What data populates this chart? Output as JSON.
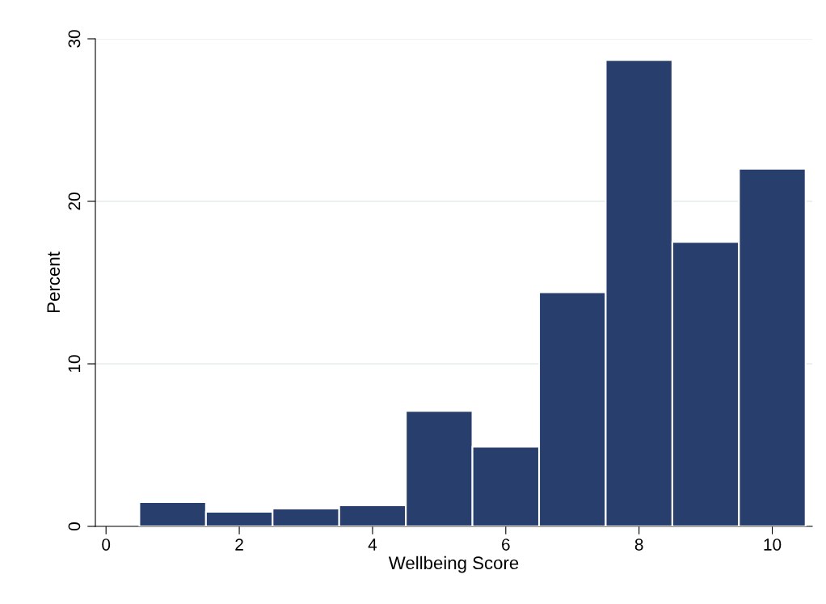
{
  "chart_data": {
    "type": "histogram",
    "xlabel": "Wellbeing Score",
    "ylabel": "Percent",
    "bins": [
      0.5,
      1.5,
      2.5,
      3.5,
      4.5,
      5.5,
      6.5,
      7.5,
      8.5,
      9.5,
      10.5
    ],
    "values": [
      1.5,
      0.9,
      1.1,
      1.3,
      7.1,
      4.9,
      14.4,
      28.7,
      17.5,
      22.0
    ],
    "color": "#283f6e",
    "xlim": [
      -0.16,
      10.6
    ],
    "ylim": [
      0,
      30
    ],
    "xticks": [
      0,
      2,
      4,
      6,
      8,
      10
    ],
    "yticks": [
      0,
      10,
      20,
      30
    ],
    "grid": "y"
  }
}
